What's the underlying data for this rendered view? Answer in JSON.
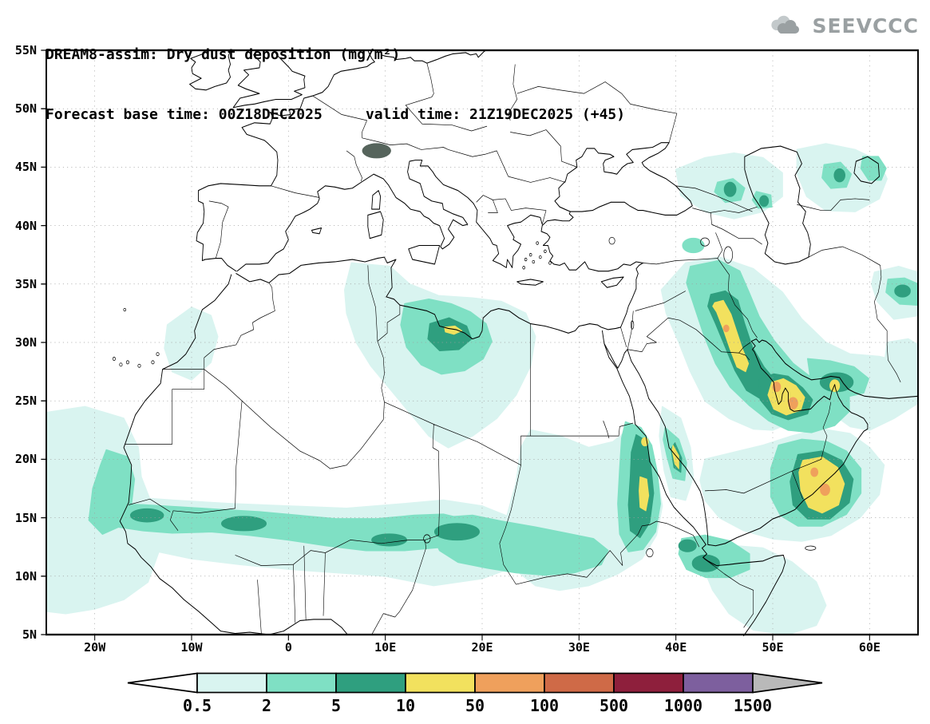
{
  "header": {
    "title_line1": "DREAM8-assim: Dry dust deposition (mg/m²)",
    "title_line2": "Forecast base time: 00Z18DEC2025     valid time: 21Z19DEC2025 (+45)"
  },
  "logo": {
    "text": "SEEVCCC",
    "icon": "cloud-icon"
  },
  "map": {
    "lat_ticks": [
      "55N",
      "50N",
      "45N",
      "40N",
      "35N",
      "30N",
      "25N",
      "20N",
      "15N",
      "10N",
      "5N"
    ],
    "lon_ticks": [
      "20W",
      "10W",
      "0",
      "10E",
      "20E",
      "30E",
      "40E",
      "50E",
      "60E"
    ],
    "lat_range": [
      5,
      55
    ],
    "lon_range": [
      -25,
      65
    ],
    "grid": "dotted 5deg lat / 10deg lon"
  },
  "legend": {
    "units": "mg/m²",
    "labels": [
      "0.5",
      "2",
      "5",
      "10",
      "50",
      "100",
      "500",
      "1000",
      "1500"
    ],
    "colors": [
      "#ffffff",
      "#d9f4f0",
      "#7fe0c4",
      "#2f9f7f",
      "#f2e15e",
      "#efa05c",
      "#cf6a47",
      "#8e1f3c",
      "#7d5f9e",
      "#b9b9b9"
    ]
  }
}
